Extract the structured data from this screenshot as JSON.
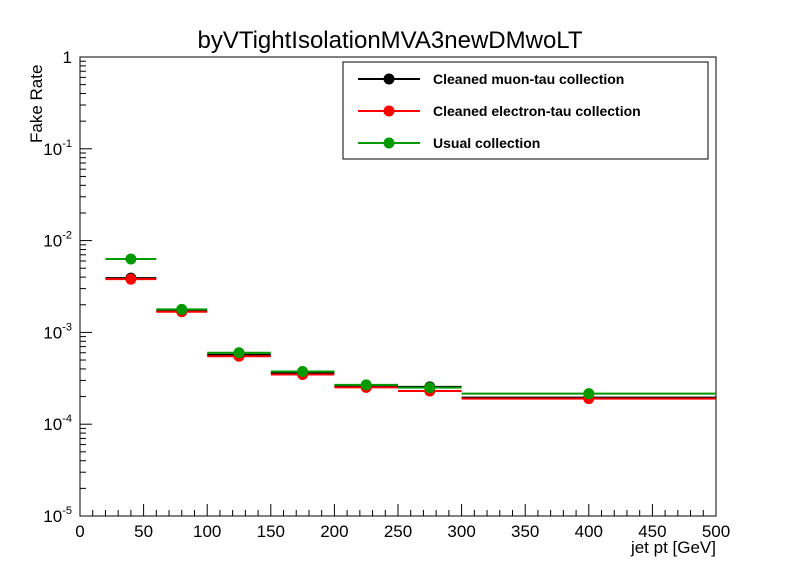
{
  "chart_data": {
    "type": "scatter",
    "title": "byVTightIsolationMVA3newDMwoLT",
    "xlabel": "jet pt [GeV]",
    "ylabel": "Fake Rate",
    "xlim": [
      0,
      500
    ],
    "ylim": [
      1e-05,
      1
    ],
    "yscale": "log",
    "grid": false,
    "legend_position": "top-right",
    "x_ticks": [
      "0",
      "50",
      "100",
      "150",
      "200",
      "250",
      "300",
      "350",
      "400",
      "450",
      "500"
    ],
    "y_ticks": [
      {
        "base": "10",
        "exp": "-5"
      },
      {
        "base": "10",
        "exp": "-4"
      },
      {
        "base": "10",
        "exp": "-3"
      },
      {
        "base": "10",
        "exp": "-2"
      },
      {
        "base": "10",
        "exp": "-1"
      },
      {
        "base": "1",
        "exp": ""
      }
    ],
    "bins": [
      [
        20,
        60
      ],
      [
        60,
        100
      ],
      [
        100,
        150
      ],
      [
        150,
        200
      ],
      [
        200,
        250
      ],
      [
        250,
        300
      ],
      [
        300,
        500
      ]
    ],
    "x": [
      40,
      80,
      125,
      175,
      225,
      275,
      400
    ],
    "series": [
      {
        "name": "Cleaned muon-tau collection",
        "color": "#000000",
        "values": [
          0.0039,
          0.00172,
          0.00057,
          0.000365,
          0.000262,
          0.000255,
          0.000195
        ]
      },
      {
        "name": "Cleaned electron-tau collection",
        "color": "#ff0000",
        "values": [
          0.0038,
          0.00168,
          0.00055,
          0.000348,
          0.000252,
          0.00023,
          0.00019
        ]
      },
      {
        "name": "Usual collection",
        "color": "#009900",
        "values": [
          0.0063,
          0.00178,
          0.0006,
          0.000375,
          0.000268,
          0.00025,
          0.000215
        ]
      }
    ]
  }
}
